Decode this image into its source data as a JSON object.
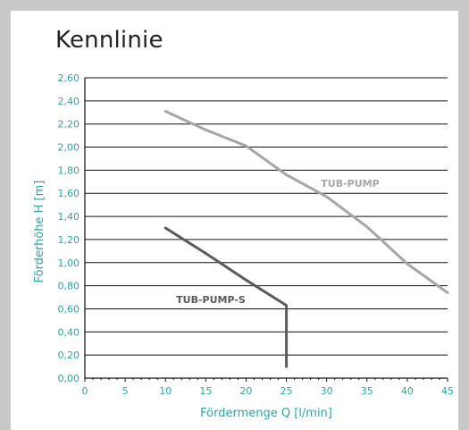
{
  "page": {
    "title": "Kennlinie"
  },
  "colors": {
    "frame": "#c8c8c8",
    "axis_text": "#2aa6a1",
    "grid": "#111111",
    "series_light": "#a6a6a6",
    "series_dark": "#5a5a5a"
  },
  "chart_data": {
    "type": "line",
    "title": "Kennlinie",
    "xlabel": "Fördermenge Q [l/min]",
    "ylabel": "Förderhöhe H [m]",
    "xlim": [
      0,
      45
    ],
    "ylim": [
      0,
      2.6
    ],
    "x_ticks": [
      "0",
      "5",
      "10",
      "15",
      "20",
      "25",
      "30",
      "35",
      "40",
      "45"
    ],
    "y_ticks": [
      "0,00",
      "0,20",
      "0,40",
      "0,60",
      "0,80",
      "1,00",
      "1,20",
      "1,40",
      "1,60",
      "1,80",
      "2,00",
      "2,20",
      "2,40",
      "2,60"
    ],
    "grid": "horizontal",
    "series": [
      {
        "name": "TUB-PUMP",
        "color": "#a6a6a6",
        "points": [
          [
            10,
            2.31
          ],
          [
            15,
            2.15
          ],
          [
            20,
            2.01
          ],
          [
            25,
            1.76
          ],
          [
            30,
            1.57
          ],
          [
            35,
            1.31
          ],
          [
            40,
            0.99
          ],
          [
            45,
            0.74
          ]
        ]
      },
      {
        "name": "TUB-PUMP-S",
        "color": "#5a5a5a",
        "points": [
          [
            10,
            1.3
          ],
          [
            15,
            1.08
          ],
          [
            20,
            0.85
          ],
          [
            25,
            0.63
          ],
          [
            25,
            0.1
          ]
        ]
      }
    ]
  }
}
